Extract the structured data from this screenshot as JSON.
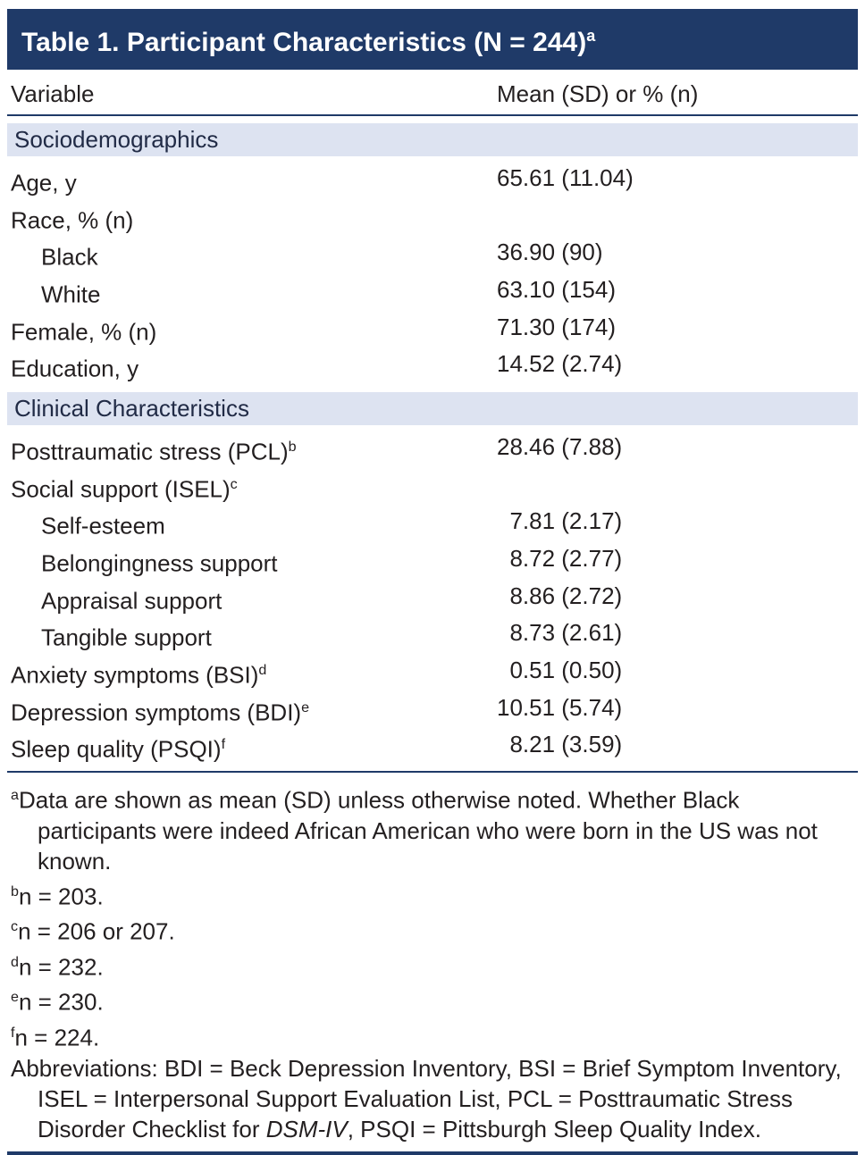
{
  "table": {
    "title": "Table 1. Participant Characteristics (N = 244)",
    "title_sup": "a",
    "columns": [
      "Variable",
      "Mean (SD) or % (n)"
    ],
    "sections": [
      {
        "header": "Sociodemographics",
        "rows": [
          {
            "label": "Age, y",
            "sup": "",
            "indent": false,
            "value": "65.61 (11.04)"
          },
          {
            "label": "Race, % (n)",
            "sup": "",
            "indent": false,
            "value": ""
          },
          {
            "label": "Black",
            "sup": "",
            "indent": true,
            "value": "36.90 (90)"
          },
          {
            "label": "White",
            "sup": "",
            "indent": true,
            "value": "63.10 (154)"
          },
          {
            "label": "Female, % (n)",
            "sup": "",
            "indent": false,
            "value": "71.30 (174)"
          },
          {
            "label": "Education, y",
            "sup": "",
            "indent": false,
            "value": "14.52 (2.74)"
          }
        ]
      },
      {
        "header": "Clinical Characteristics",
        "rows": [
          {
            "label": "Posttraumatic stress (PCL)",
            "sup": "b",
            "indent": false,
            "value": "28.46 (7.88)"
          },
          {
            "label": "Social support (ISEL)",
            "sup": "c",
            "indent": false,
            "value": ""
          },
          {
            "label": "Self-esteem",
            "sup": "",
            "indent": true,
            "value": "7.81 (2.17)"
          },
          {
            "label": "Belongingness support",
            "sup": "",
            "indent": true,
            "value": "8.72 (2.77)"
          },
          {
            "label": "Appraisal support",
            "sup": "",
            "indent": true,
            "value": "8.86 (2.72)"
          },
          {
            "label": "Tangible support",
            "sup": "",
            "indent": true,
            "value": "8.73 (2.61)"
          },
          {
            "label": "Anxiety symptoms (BSI)",
            "sup": "d",
            "indent": false,
            "value": "0.51 (0.50)"
          },
          {
            "label": "Depression symptoms (BDI)",
            "sup": "e",
            "indent": false,
            "value": "10.51 (5.74)"
          },
          {
            "label": "Sleep quality (PSQI)",
            "sup": "f",
            "indent": false,
            "value": "8.21 (3.59)"
          }
        ]
      }
    ],
    "footnotes": [
      {
        "sup": "a",
        "text": "Data are shown as mean (SD) unless otherwise noted. Whether Black participants were indeed African American who were born in the US was not known."
      },
      {
        "sup": "b",
        "text": "n = 203."
      },
      {
        "sup": "c",
        "text": "n = 206 or 207."
      },
      {
        "sup": "d",
        "text": "n = 232."
      },
      {
        "sup": "e",
        "text": "n = 230."
      },
      {
        "sup": "f",
        "text": "n = 224."
      }
    ],
    "abbreviations": {
      "before": "Abbreviations: BDI = Beck Depression Inventory, BSI = Brief Symptom Inventory, ISEL = Interpersonal Support Evaluation List, PCL = Posttraumatic Stress Disorder Checklist for ",
      "italic": "DSM-IV",
      "after": ", PSQI = Pittsburgh Sleep Quality Index."
    },
    "colors": {
      "header_bg": "#1F3A68",
      "band_bg": "#DDE3F1",
      "rule": "#1F3A68",
      "text": "#231F20",
      "title_text": "#FFFFFF"
    }
  }
}
